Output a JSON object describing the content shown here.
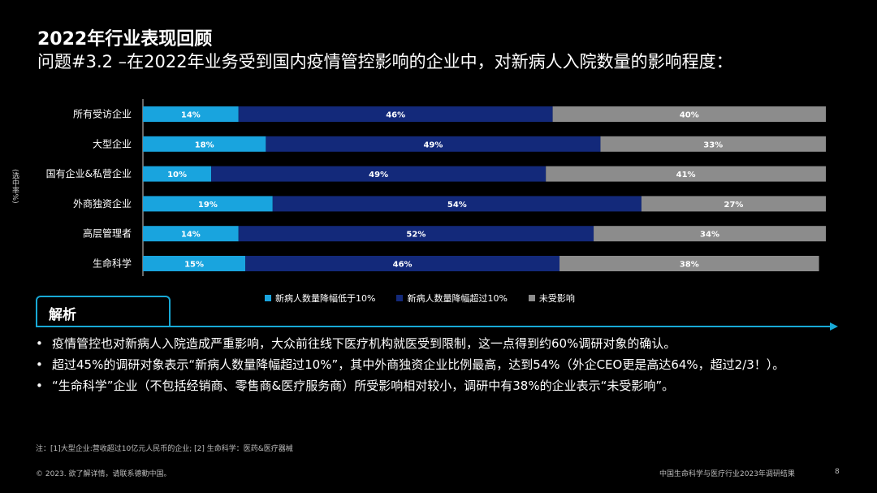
{
  "title": "2022年行业表现回顾",
  "subtitle": "问题#3.2 –在2022年业务受到国内疫情管控影响的企业中，对新病人入院数量的影响程度：",
  "ylabel_rotated": "(选中率%)",
  "colors": {
    "light_blue": "#19a4de",
    "dark_blue": "#13297a",
    "grey": "#8c8c8c",
    "accent": "#18a9d6"
  },
  "chart_data": {
    "type": "bar",
    "orientation": "horizontal",
    "stacked": true,
    "percent_stacked": true,
    "categories": [
      "所有受访企业",
      "大型企业",
      "国有企业&私营企业",
      "外商独资企业",
      "高层管理者",
      "生命科学"
    ],
    "series": [
      {
        "name": "新病人数量降幅低于10%",
        "values": [
          14,
          18,
          10,
          19,
          14,
          15
        ],
        "labels": [
          "14%",
          "18%",
          "10%",
          "19%",
          "14%",
          "15%"
        ],
        "color": "#19a4de"
      },
      {
        "name": "新病人数量降幅超过10%",
        "values": [
          46,
          49,
          49,
          54,
          52,
          46
        ],
        "labels": [
          "46%",
          "49%",
          "49%",
          "54%",
          "52%",
          "46%"
        ],
        "color": "#13297a"
      },
      {
        "name": "未受影响",
        "values": [
          40,
          33,
          41,
          27,
          34,
          38
        ],
        "labels": [
          "40%",
          "33%",
          "41%",
          "27%",
          "34%",
          "38%"
        ],
        "color": "#8c8c8c"
      }
    ],
    "xlim": [
      0,
      100
    ],
    "ylabel": "(选中率%)",
    "legend_position": "bottom"
  },
  "analysis": {
    "heading": "解析",
    "bullets": [
      "疫情管控也对新病人入院造成严重影响，大众前往线下医疗机构就医受到限制，这一点得到约60%调研对象的确认。",
      "超过45%的调研对象表示“新病人数量降幅超过10%”，其中外商独资企业比例最高，达到54%（外企CEO更是高达64%，超过2/3！）。",
      "“生命科学”企业（不包括经销商、零售商&医疗服务商）所受影响相对较小，调研中有38%的企业表示“未受影响”。"
    ]
  },
  "note": "注：[1]大型企业:营收超过10亿元人民币的企业; [2] 生命科学：医药&医疗器械",
  "footer": {
    "left": "© 2023. 欲了解详情，请联系德勤中国。",
    "right": "中国生命科学与医疗行业2023年调研结果",
    "page": "8"
  }
}
